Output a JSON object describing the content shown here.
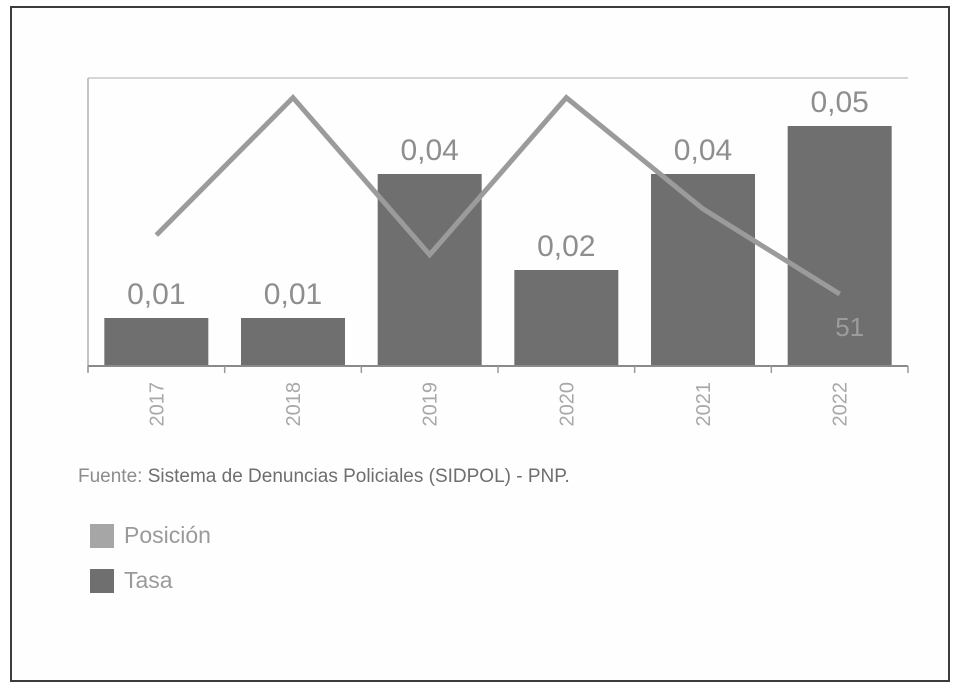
{
  "chart_data": {
    "type": "bar",
    "categories": [
      "2017",
      "2018",
      "2019",
      "2020",
      "2021",
      "2022"
    ],
    "series": [
      {
        "name": "Tasa",
        "type": "bar",
        "values": [
          0.01,
          0.01,
          0.04,
          0.02,
          0.04,
          0.05
        ],
        "labels": [
          "0,01",
          "0,01",
          "0,04",
          "0,02",
          "0,04",
          "0,05"
        ]
      },
      {
        "name": "Posición",
        "type": "line",
        "values": [
          60,
          81,
          57,
          81,
          64,
          51
        ],
        "point_labels": [
          "",
          "",
          "",
          "",
          "",
          "51"
        ]
      }
    ],
    "title": "",
    "xlabel": "",
    "ylabel": "",
    "ylim": [
      0,
      0.06
    ],
    "grid": false,
    "legend_position": "bottom-left",
    "colors": {
      "bar": "#6f6f6f",
      "line": "#9b9b9b"
    }
  },
  "source_prefix": "Fuente: ",
  "source_name": "Sistema de Denuncias Policiales (SIDPOL) - PNP.",
  "legend": [
    {
      "label": "Posición",
      "color": "#a6a6a6"
    },
    {
      "label": "Tasa",
      "color": "#6f6f6f"
    }
  ]
}
